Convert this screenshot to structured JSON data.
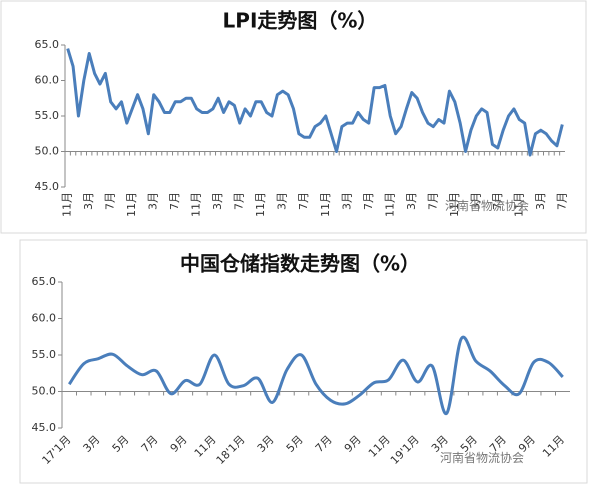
{
  "chart_data": [
    {
      "type": "line",
      "title": "LPI走势图（%）",
      "annotation": "河南省物流协会",
      "categories": [
        "11月",
        null,
        null,
        null,
        "3月",
        null,
        null,
        null,
        "7月",
        null,
        null,
        null,
        "11月",
        null,
        null,
        null,
        "3月",
        null,
        null,
        null,
        "7月",
        null,
        null,
        null,
        "11月",
        null,
        null,
        null,
        "3月",
        null,
        null,
        null,
        "7月",
        null,
        null,
        null,
        "11月",
        null,
        null,
        null,
        "3月",
        null,
        null,
        null,
        "7月",
        null,
        null,
        null,
        "11月",
        null,
        null,
        null,
        "3月",
        null,
        null,
        null,
        "7月",
        null,
        null,
        null,
        "11月",
        null,
        null,
        null,
        "3月",
        null,
        null,
        null,
        "7月",
        null,
        null,
        null,
        "11月",
        null,
        null,
        null,
        "3月",
        null,
        null,
        null,
        "7月",
        null,
        null,
        null,
        "11月",
        null,
        null,
        null,
        "3月",
        null,
        null,
        null,
        "7月"
      ],
      "series": [
        {
          "name": "LPI",
          "color": "#4a7ebb",
          "values": [
            64.5,
            62,
            55,
            60,
            63.8,
            61,
            59.5,
            61,
            57,
            56,
            57,
            54,
            56,
            58,
            56,
            52.5,
            58,
            57,
            55.5,
            55.5,
            57,
            57,
            57.5,
            57.5,
            56,
            55.5,
            55.5,
            56,
            57.5,
            55.5,
            57,
            56.5,
            54,
            56,
            55,
            57,
            57,
            55.5,
            55,
            58,
            58.5,
            58,
            56,
            52.5,
            52,
            52,
            53.5,
            54,
            55,
            52.5,
            50,
            53.5,
            54,
            54,
            55.5,
            54.5,
            54,
            59,
            59,
            59.3,
            55,
            52.5,
            53.5,
            56,
            58.3,
            57.5,
            55.5,
            54,
            53.5,
            54.5,
            54,
            58.5,
            57,
            54,
            50,
            53,
            55,
            56,
            55.5,
            51,
            50.5,
            53,
            55,
            56,
            54.5,
            54,
            49.5,
            52.5,
            53,
            52.5,
            51.5,
            50.8,
            53.8
          ]
        }
      ],
      "ylim": [
        45,
        65
      ],
      "yticks": [
        {
          "value": 45,
          "label": "45.0"
        },
        {
          "value": 50,
          "label": "50.0"
        },
        {
          "value": 55,
          "label": "55.0"
        },
        {
          "value": 60,
          "label": "60.0"
        },
        {
          "value": 65,
          "label": "65.0"
        }
      ],
      "x_axis_at": 50,
      "smooth": false,
      "grid": false
    },
    {
      "type": "line",
      "title": "中国仓储指数走势图（%）",
      "annotation": "河南省物流协会",
      "categories": [
        "17'1月",
        null,
        "3月",
        null,
        "5月",
        null,
        "7月",
        null,
        "9月",
        null,
        "11月",
        null,
        "18'1月",
        null,
        "3月",
        null,
        "5月",
        null,
        "7月",
        null,
        "9月",
        null,
        "11月",
        null,
        "19'1月",
        null,
        "3月",
        null,
        "5月",
        null,
        "7月",
        null,
        "9月",
        null,
        "11月"
      ],
      "series": [
        {
          "name": "中国仓储指数",
          "color": "#4a7ebb",
          "values": [
            51,
            53.8,
            54.5,
            55.1,
            53.5,
            52.3,
            52.8,
            49.7,
            51.5,
            51,
            55,
            51,
            50.8,
            51.8,
            48.5,
            53,
            55,
            51,
            48.8,
            48.3,
            49.5,
            51.2,
            51.6,
            54.3,
            51.3,
            53.5,
            47,
            57.2,
            54.2,
            52.8,
            50.8,
            49.7,
            54,
            54,
            52
          ]
        }
      ],
      "ylim": [
        45,
        65
      ],
      "yticks": [
        {
          "value": 45,
          "label": "45.0"
        },
        {
          "value": 50,
          "label": "50.0"
        },
        {
          "value": 55,
          "label": "55.0"
        },
        {
          "value": 60,
          "label": "60.0"
        },
        {
          "value": 65,
          "label": "65.0"
        }
      ],
      "x_axis_at": 50,
      "smooth": true,
      "grid": false
    }
  ]
}
